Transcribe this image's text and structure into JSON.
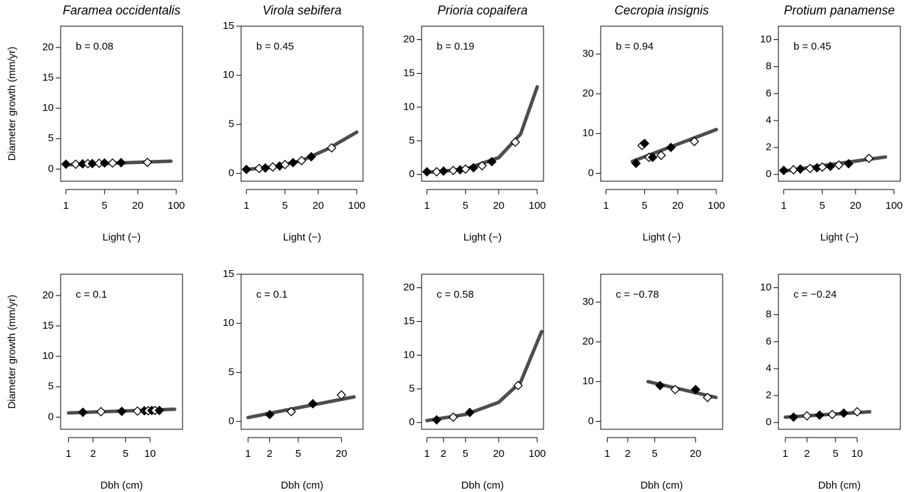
{
  "chart_data": [
    {
      "type": "scatter",
      "title": "Faramea occidentalis",
      "annotation": "b = 0.08",
      "xlabel": "Light (−)",
      "ylabel": "Diameter growth (mm/yr)",
      "xscale": "log",
      "xlim": [
        0.8,
        130
      ],
      "ylim": [
        -2,
        23.5
      ],
      "xticks": [
        1,
        5,
        20,
        100
      ],
      "yticks": [
        0,
        5,
        10,
        15,
        20
      ],
      "series": [
        {
          "color": "#000000",
          "x": [
            1,
            1.5,
            2,
            2.5,
            3,
            4,
            5,
            7,
            10,
            30
          ],
          "values": [
            0.8,
            0.8,
            0.85,
            0.9,
            0.9,
            0.95,
            1,
            1,
            1.05,
            1.1
          ]
        }
      ],
      "fit": {
        "color": "#4d4d4d",
        "x": [
          1,
          80
        ],
        "values": [
          0.7,
          1.3
        ]
      }
    },
    {
      "type": "scatter",
      "title": "Virola sebifera",
      "annotation": "b = 0.45",
      "xlabel": "Light (−)",
      "xscale": "log",
      "xlim": [
        0.8,
        130
      ],
      "ylim": [
        -0.8,
        15
      ],
      "xticks": [
        1,
        5,
        20,
        100
      ],
      "yticks": [
        0,
        5,
        10,
        15
      ],
      "series": [
        {
          "color": "#000000",
          "x": [
            1,
            1.7,
            2.2,
            3,
            4,
            5,
            7,
            10,
            15,
            35
          ],
          "values": [
            0.4,
            0.5,
            0.55,
            0.65,
            0.75,
            0.9,
            1.1,
            1.3,
            1.7,
            2.6
          ]
        }
      ],
      "fit": {
        "color": "#4d4d4d",
        "x": [
          1,
          3,
          10,
          30,
          100
        ],
        "values": [
          0.4,
          0.65,
          1.3,
          2.5,
          4.2
        ]
      }
    },
    {
      "type": "scatter",
      "title": "Prioria copaifera",
      "annotation": "b = 0.19",
      "xlabel": "Light (−)",
      "xscale": "log",
      "xlim": [
        0.8,
        130
      ],
      "ylim": [
        -1,
        22
      ],
      "xticks": [
        1,
        5,
        20,
        100
      ],
      "yticks": [
        0,
        5,
        10,
        15,
        20
      ],
      "series": [
        {
          "color": "#000000",
          "x": [
            1,
            1.5,
            2,
            3,
            4,
            5,
            7,
            10,
            15,
            40
          ],
          "values": [
            0.4,
            0.4,
            0.5,
            0.6,
            0.7,
            0.8,
            1,
            1.3,
            1.9,
            4.8
          ]
        }
      ],
      "fit": {
        "color": "#4d4d4d",
        "x": [
          1,
          5,
          20,
          50,
          100
        ],
        "values": [
          0.3,
          0.8,
          2.5,
          6,
          13
        ]
      }
    },
    {
      "type": "scatter",
      "title": "Cecropia insignis",
      "annotation": "b = 0.94",
      "xlabel": "Light (−)",
      "xscale": "log",
      "xlim": [
        0.8,
        130
      ],
      "ylim": [
        -2,
        37
      ],
      "xticks": [
        1,
        5,
        20,
        100
      ],
      "yticks": [
        0,
        10,
        20,
        30
      ],
      "series": [
        {
          "color": "#000000",
          "x": [
            3.5,
            4.5,
            5,
            6,
            7,
            10,
            15,
            40
          ],
          "values": [
            2.5,
            7,
            7.5,
            4,
            4,
            4.5,
            6.5,
            8
          ]
        }
      ],
      "fit": {
        "color": "#4d4d4d",
        "x": [
          3,
          100
        ],
        "values": [
          3,
          11
        ]
      }
    },
    {
      "type": "scatter",
      "title": "Protium panamense",
      "annotation": "b = 0.45",
      "xlabel": "Light (−)",
      "xscale": "log",
      "xlim": [
        0.8,
        130
      ],
      "ylim": [
        -0.5,
        11
      ],
      "xticks": [
        1,
        5,
        20,
        100
      ],
      "yticks": [
        0,
        2,
        4,
        6,
        8,
        10
      ],
      "series": [
        {
          "color": "#000000",
          "x": [
            1,
            1.5,
            2,
            3,
            4,
            5,
            7,
            10,
            15,
            35
          ],
          "values": [
            0.3,
            0.35,
            0.4,
            0.45,
            0.5,
            0.55,
            0.6,
            0.7,
            0.8,
            1.2
          ]
        }
      ],
      "fit": {
        "color": "#4d4d4d",
        "x": [
          1,
          70
        ],
        "values": [
          0.25,
          1.3
        ]
      }
    },
    {
      "type": "scatter",
      "annotation": "c = 0.1",
      "xlabel": "Dbh (cm)",
      "ylabel": "Diameter growth (mm/yr)",
      "xscale": "log",
      "xlim": [
        0.8,
        25
      ],
      "ylim": [
        -2,
        23.5
      ],
      "xticks": [
        1,
        2,
        5,
        10
      ],
      "yticks": [
        0,
        5,
        10,
        15,
        20
      ],
      "series": [
        {
          "color": "#000000",
          "x": [
            1.5,
            2.5,
            4.5,
            7,
            8.5,
            9.5,
            10.5,
            11.5,
            13
          ],
          "values": [
            0.8,
            0.9,
            0.95,
            1,
            1.05,
            1.05,
            1.1,
            1.1,
            1.1
          ]
        }
      ],
      "fit": {
        "color": "#4d4d4d",
        "x": [
          1,
          20
        ],
        "values": [
          0.7,
          1.3
        ]
      }
    },
    {
      "type": "scatter",
      "annotation": "c = 0.1",
      "xlabel": "Dbh (cm)",
      "xscale": "log",
      "xlim": [
        0.8,
        40
      ],
      "ylim": [
        -0.8,
        15
      ],
      "xticks": [
        1,
        2,
        5,
        20
      ],
      "yticks": [
        0,
        5,
        10,
        15
      ],
      "series": [
        {
          "color": "#000000",
          "x": [
            2,
            4,
            8,
            20
          ],
          "values": [
            0.7,
            1,
            1.8,
            2.7
          ]
        }
      ],
      "fit": {
        "color": "#4d4d4d",
        "x": [
          1,
          30
        ],
        "values": [
          0.4,
          2.5
        ]
      }
    },
    {
      "type": "scatter",
      "annotation": "c = 0.58",
      "xlabel": "Dbh (cm)",
      "xscale": "log",
      "xlim": [
        0.8,
        130
      ],
      "ylim": [
        -1,
        22
      ],
      "xticks": [
        1,
        2,
        5,
        20,
        100
      ],
      "yticks": [
        0,
        5,
        10,
        15,
        20
      ],
      "series": [
        {
          "color": "#000000",
          "x": [
            1.5,
            3,
            6,
            45
          ],
          "values": [
            0.4,
            0.8,
            1.5,
            5.5
          ]
        }
      ],
      "fit": {
        "color": "#4d4d4d",
        "x": [
          1,
          5,
          20,
          50,
          120
        ],
        "values": [
          0.3,
          1.2,
          3,
          6,
          13.5
        ]
      }
    },
    {
      "type": "scatter",
      "annotation": "c = −0.78",
      "xlabel": "Dbh (cm)",
      "xscale": "log",
      "xlim": [
        0.8,
        50
      ],
      "ylim": [
        -2,
        37
      ],
      "xticks": [
        1,
        2,
        5,
        20
      ],
      "yticks": [
        0,
        10,
        20,
        30
      ],
      "series": [
        {
          "color": "#000000",
          "x": [
            6,
            10,
            20,
            30
          ],
          "values": [
            9,
            8,
            8,
            6
          ]
        }
      ],
      "fit": {
        "color": "#4d4d4d",
        "x": [
          4,
          40
        ],
        "values": [
          10,
          6
        ]
      }
    },
    {
      "type": "scatter",
      "annotation": "c = −0.24",
      "xlabel": "Dbh (cm)",
      "xscale": "log",
      "xlim": [
        0.8,
        40
      ],
      "ylim": [
        -0.5,
        11
      ],
      "xticks": [
        1,
        2,
        5,
        10
      ],
      "yticks": [
        0,
        2,
        4,
        6,
        8,
        10
      ],
      "series": [
        {
          "color": "#000000",
          "x": [
            1.3,
            2,
            3,
            4.5,
            6.5,
            10
          ],
          "values": [
            0.4,
            0.5,
            0.55,
            0.6,
            0.7,
            0.8
          ]
        }
      ],
      "fit": {
        "color": "#4d4d4d",
        "x": [
          1,
          15
        ],
        "values": [
          0.4,
          0.8
        ]
      }
    }
  ]
}
